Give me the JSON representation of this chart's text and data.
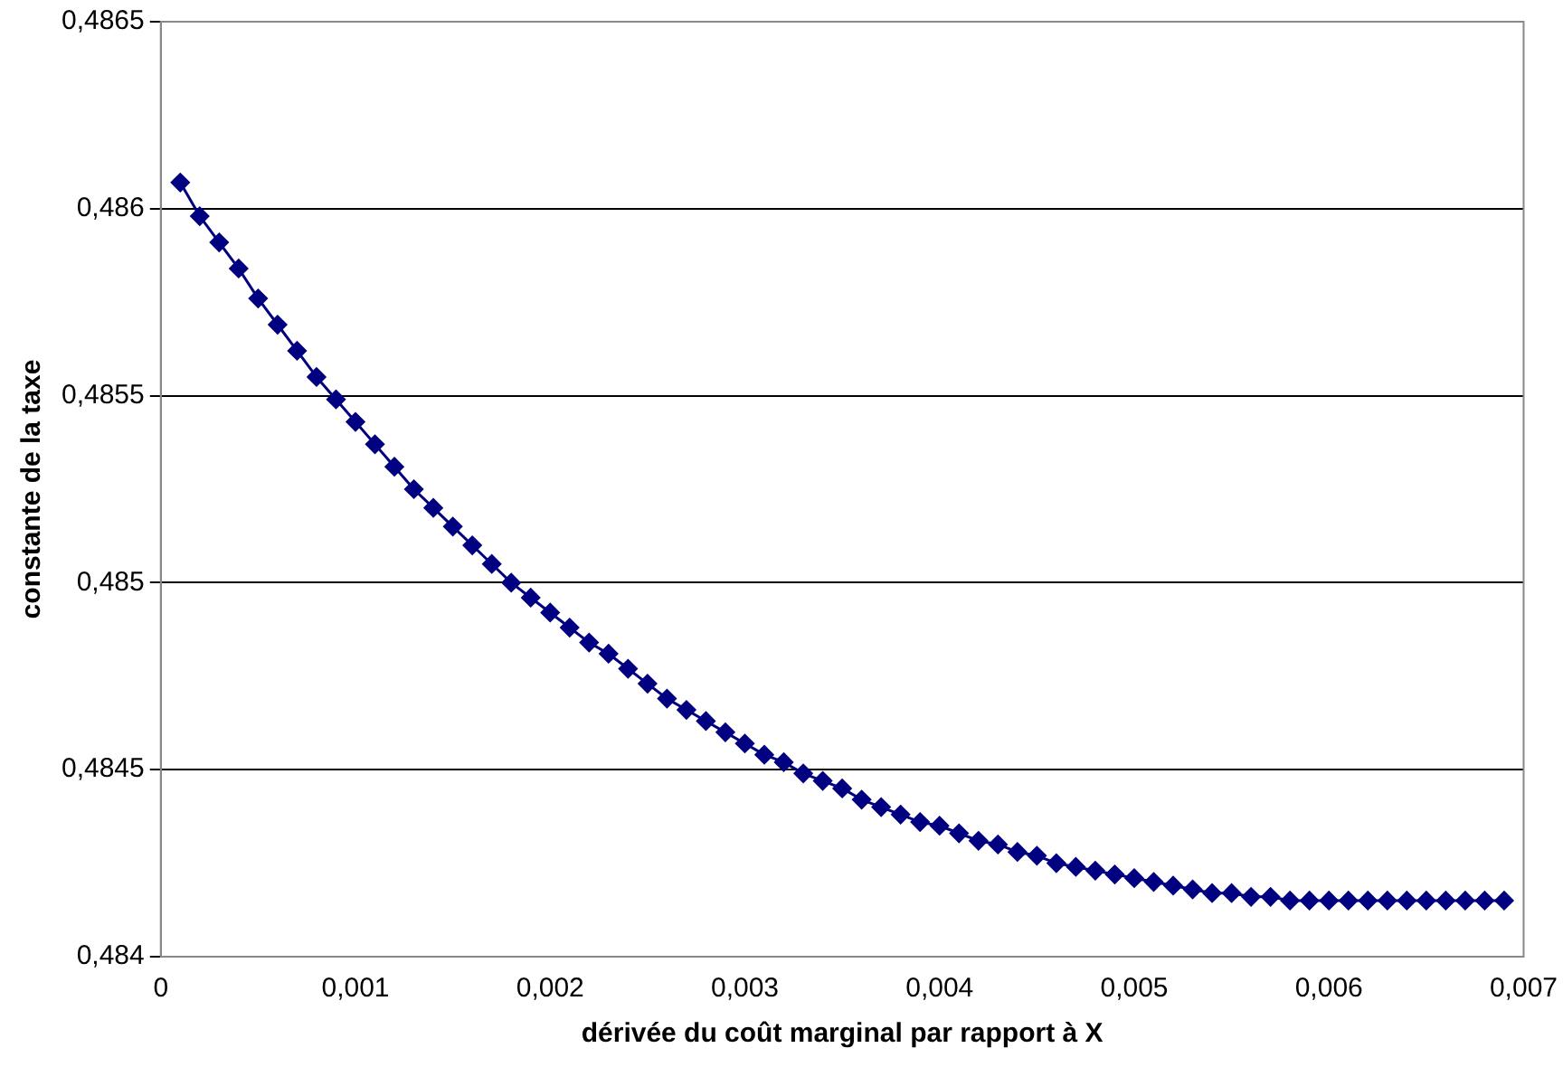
{
  "chart_data": {
    "type": "line",
    "xlabel": "dérivée du coût marginal par rapport à X",
    "ylabel": "constante de la taxe",
    "x": [
      0.0001,
      0.0002,
      0.0003,
      0.0004,
      0.0005,
      0.0006,
      0.0007,
      0.0008,
      0.0009,
      0.001,
      0.0011,
      0.0012,
      0.0013,
      0.0014,
      0.0015,
      0.0016,
      0.0017,
      0.0018,
      0.0019,
      0.002,
      0.0021,
      0.0022,
      0.0023,
      0.0024,
      0.0025,
      0.0026,
      0.0027,
      0.0028,
      0.0029,
      0.003,
      0.0031,
      0.0032,
      0.0033,
      0.0034,
      0.0035,
      0.0036,
      0.0037,
      0.0038,
      0.0039,
      0.004,
      0.0041,
      0.0042,
      0.0043,
      0.0044,
      0.0045,
      0.0046,
      0.0047,
      0.0048,
      0.0049,
      0.005,
      0.0051,
      0.0052,
      0.0053,
      0.0054,
      0.0055,
      0.0056,
      0.0057,
      0.0058,
      0.0059,
      0.006,
      0.0061,
      0.0062,
      0.0063,
      0.0064,
      0.0065,
      0.0066,
      0.0067,
      0.0068,
      0.0069
    ],
    "series": [
      {
        "color": "#000080",
        "values": [
          0.48607,
          0.48598,
          0.48591,
          0.48584,
          0.48576,
          0.48569,
          0.48562,
          0.48555,
          0.48549,
          0.48543,
          0.48537,
          0.48531,
          0.48525,
          0.4852,
          0.48515,
          0.4851,
          0.48505,
          0.485,
          0.48496,
          0.48492,
          0.48488,
          0.48484,
          0.48481,
          0.48477,
          0.48473,
          0.48469,
          0.48466,
          0.48463,
          0.4846,
          0.48457,
          0.48454,
          0.48452,
          0.48449,
          0.48447,
          0.48445,
          0.48442,
          0.4844,
          0.48438,
          0.48436,
          0.48435,
          0.48433,
          0.48431,
          0.4843,
          0.48428,
          0.48427,
          0.48425,
          0.48424,
          0.48423,
          0.48422,
          0.48421,
          0.4842,
          0.48419,
          0.48418,
          0.48417,
          0.48417,
          0.48416,
          0.48416,
          0.48415,
          0.48415,
          0.48415,
          0.48415,
          0.48415,
          0.48415,
          0.48415,
          0.48415,
          0.48415,
          0.48415,
          0.48415,
          0.48415
        ]
      }
    ],
    "xlim": [
      0,
      0.007
    ],
    "xticks": [
      0,
      {
        "value": 0.001,
        "label": "0,001"
      },
      {
        "value": 0.002,
        "label": "0,002"
      },
      {
        "value": 0.003,
        "label": "0,003"
      },
      {
        "value": 0.004,
        "label": "0,004"
      },
      {
        "value": 0.005,
        "label": "0,005"
      },
      {
        "value": 0.006,
        "label": "0,006"
      },
      {
        "value": 0.007,
        "label": "0,007"
      }
    ],
    "ylim": [
      0.484,
      0.4865
    ],
    "yticks": [
      {
        "value": 0.484,
        "label": "0,484"
      },
      {
        "value": 0.4845,
        "label": "0,4845"
      },
      {
        "value": 0.485,
        "label": "0,485"
      },
      {
        "value": 0.4855,
        "label": "0,4855"
      },
      {
        "value": 0.486,
        "label": "0,486"
      },
      {
        "value": 0.4865,
        "label": "0,4865"
      }
    ],
    "grid": "y",
    "marker": "diamond",
    "line_style": "solid",
    "legend": false
  }
}
